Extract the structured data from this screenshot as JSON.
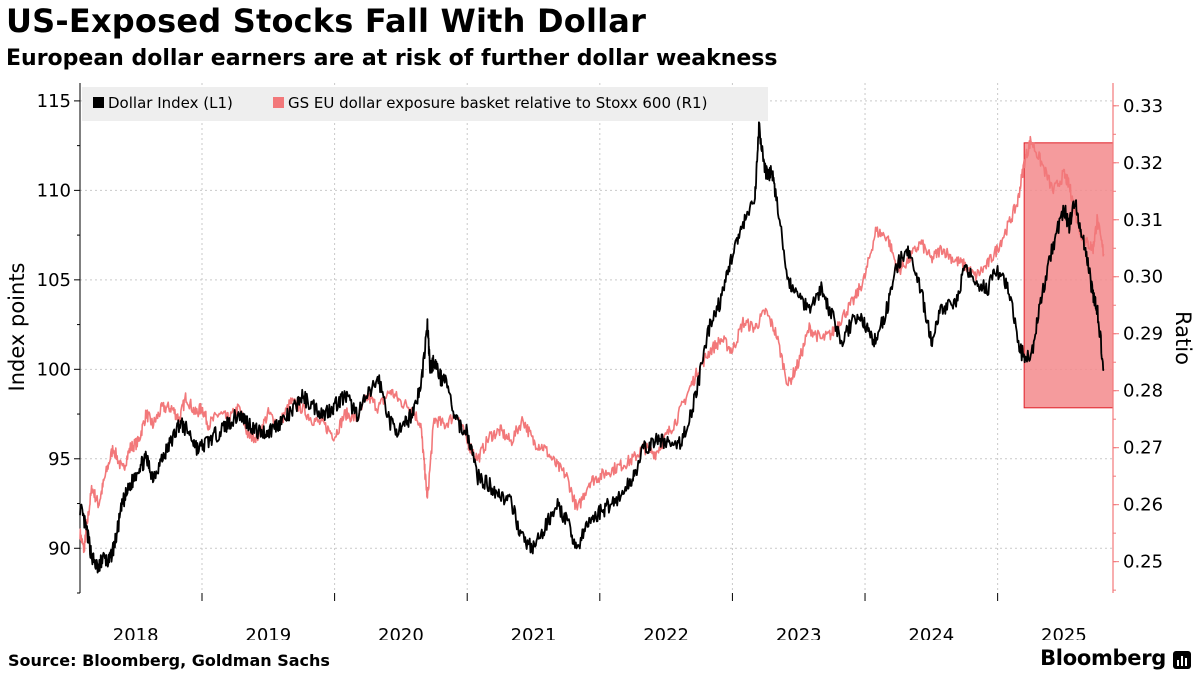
{
  "title": "US-Exposed Stocks Fall With Dollar",
  "subtitle": "European dollar earners are at risk of further dollar weakness",
  "source": "Source: Bloomberg, Goldman Sachs",
  "brand": "Bloomberg",
  "colors": {
    "dollar": "#000000",
    "basket": "#f2787a",
    "highlight_fill": "#f38a8c",
    "highlight_stroke": "#e01f27",
    "right_axis": "#f2787a",
    "grid": "#c9c9c9"
  },
  "chart_data": {
    "type": "line",
    "title": "US-Exposed Stocks Fall With Dollar",
    "subtitle": "European dollar earners are at risk of further dollar weakness",
    "ylabel": "Index points",
    "ylabel_right": "Ratio",
    "ylim": [
      87.5,
      116
    ],
    "ylim_right": [
      0.2445,
      0.334
    ],
    "xlim": [
      2017.58,
      2025.37
    ],
    "yticks": [
      90,
      95,
      100,
      105,
      110,
      115
    ],
    "yticks_right": [
      0.25,
      0.26,
      0.27,
      0.28,
      0.29,
      0.3,
      0.31,
      0.32,
      0.33
    ],
    "ytick_labels_right": [
      "0.25",
      "0.26",
      "0.27",
      "0.28",
      "0.29",
      "0.30",
      "0.31",
      "0.32",
      "0.33"
    ],
    "xtick_labels": [
      "2018",
      "2019",
      "2020",
      "2021",
      "2022",
      "2023",
      "2024",
      "2025"
    ],
    "xticks_at": [
      2018.0,
      2019.0,
      2020.0,
      2021.0,
      2022.0,
      2023.0,
      2024.0,
      2025.0
    ],
    "legend": [
      "Dollar Index (L1)",
      "GS EU dollar exposure basket relative to Stoxx 600 (R1)"
    ],
    "legend_position": "top-left",
    "highlight": {
      "x": [
        2024.7,
        2025.37
      ],
      "y_right": [
        0.277,
        0.3235
      ]
    },
    "series": [
      {
        "name": "Dollar Index (L1)",
        "axis": "left",
        "x": [
          2017.58,
          2017.63,
          2017.67,
          2017.72,
          2017.75,
          2017.8,
          2017.85,
          2017.9,
          2017.96,
          2018.02,
          2018.08,
          2018.13,
          2018.2,
          2018.27,
          2018.33,
          2018.4,
          2018.47,
          2018.55,
          2018.63,
          2018.7,
          2018.78,
          2018.85,
          2018.92,
          2019.0,
          2019.08,
          2019.17,
          2019.25,
          2019.33,
          2019.42,
          2019.5,
          2019.58,
          2019.67,
          2019.75,
          2019.83,
          2019.92,
          2020.0,
          2020.08,
          2020.15,
          2020.2,
          2020.22,
          2020.25,
          2020.3,
          2020.33,
          2020.42,
          2020.5,
          2020.58,
          2020.67,
          2020.75,
          2020.83,
          2020.92,
          2021.0,
          2021.08,
          2021.17,
          2021.25,
          2021.33,
          2021.42,
          2021.5,
          2021.58,
          2021.67,
          2021.75,
          2021.83,
          2021.92,
          2022.0,
          2022.08,
          2022.17,
          2022.25,
          2022.33,
          2022.42,
          2022.5,
          2022.58,
          2022.67,
          2022.7,
          2022.75,
          2022.8,
          2022.83,
          2022.92,
          2023.0,
          2023.08,
          2023.17,
          2023.25,
          2023.33,
          2023.42,
          2023.5,
          2023.58,
          2023.67,
          2023.75,
          2023.83,
          2023.92,
          2024.0,
          2024.08,
          2024.17,
          2024.25,
          2024.33,
          2024.42,
          2024.5,
          2024.58,
          2024.67,
          2024.75,
          2024.83,
          2024.92,
          2025.0,
          2025.04,
          2025.08,
          2025.12,
          2025.17,
          2025.22,
          2025.25,
          2025.3
        ],
        "values": [
          92.3,
          91.0,
          89.5,
          88.8,
          89.5,
          89.2,
          90.5,
          92.5,
          93.5,
          94.5,
          95.0,
          94.0,
          95.0,
          96.0,
          97.0,
          96.5,
          95.5,
          96.0,
          96.5,
          97.0,
          97.5,
          97.0,
          96.5,
          96.5,
          97.0,
          97.5,
          98.5,
          98.0,
          97.5,
          98.0,
          98.5,
          97.5,
          98.5,
          99.5,
          97.0,
          96.5,
          97.5,
          99.0,
          102.5,
          100.0,
          100.5,
          99.5,
          99.5,
          97.0,
          96.5,
          94.0,
          93.5,
          93.0,
          92.5,
          90.5,
          90.0,
          91.0,
          92.5,
          91.5,
          90.0,
          91.5,
          92.0,
          92.5,
          93.0,
          94.0,
          95.5,
          96.0,
          96.0,
          95.5,
          97.0,
          99.5,
          102.5,
          104.0,
          106.5,
          108.0,
          109.5,
          113.5,
          111.0,
          111.0,
          109.5,
          105.0,
          104.0,
          103.5,
          104.5,
          103.0,
          101.5,
          103.0,
          102.5,
          101.5,
          103.5,
          106.0,
          106.5,
          104.5,
          101.5,
          103.5,
          103.5,
          105.5,
          105.0,
          104.5,
          105.5,
          104.5,
          101.0,
          100.5,
          104.0,
          107.0,
          109.0,
          108.0,
          109.5,
          108.0,
          106.5,
          104.0,
          103.5,
          100.0
        ]
      },
      {
        "name": "GS EU dollar exposure basket relative to Stoxx 600 (R1)",
        "axis": "right",
        "x": [
          2017.58,
          2017.61,
          2017.63,
          2017.67,
          2017.72,
          2017.77,
          2017.83,
          2017.9,
          2017.96,
          2018.02,
          2018.08,
          2018.13,
          2018.2,
          2018.27,
          2018.33,
          2018.38,
          2018.45,
          2018.5,
          2018.55,
          2018.63,
          2018.7,
          2018.78,
          2018.85,
          2018.92,
          2019.0,
          2019.08,
          2019.17,
          2019.25,
          2019.33,
          2019.42,
          2019.5,
          2019.58,
          2019.67,
          2019.75,
          2019.83,
          2019.92,
          2020.0,
          2020.08,
          2020.15,
          2020.18,
          2020.2,
          2020.25,
          2020.33,
          2020.42,
          2020.5,
          2020.58,
          2020.67,
          2020.75,
          2020.83,
          2020.92,
          2021.0,
          2021.08,
          2021.17,
          2021.25,
          2021.33,
          2021.42,
          2021.5,
          2021.58,
          2021.67,
          2021.75,
          2021.83,
          2021.92,
          2022.0,
          2022.08,
          2022.17,
          2022.25,
          2022.33,
          2022.42,
          2022.5,
          2022.58,
          2022.67,
          2022.75,
          2022.83,
          2022.92,
          2023.0,
          2023.08,
          2023.17,
          2023.25,
          2023.33,
          2023.42,
          2023.5,
          2023.58,
          2023.67,
          2023.75,
          2023.83,
          2023.92,
          2024.0,
          2024.08,
          2024.17,
          2024.25,
          2024.33,
          2024.42,
          2024.5,
          2024.58,
          2024.65,
          2024.7,
          2024.75,
          2024.83,
          2024.92,
          2025.0,
          2025.04,
          2025.08,
          2025.12,
          2025.17,
          2025.22,
          2025.25,
          2025.3
        ],
        "values": [
          0.255,
          0.252,
          0.256,
          0.263,
          0.26,
          0.265,
          0.27,
          0.266,
          0.27,
          0.271,
          0.276,
          0.274,
          0.277,
          0.277,
          0.275,
          0.279,
          0.276,
          0.277,
          0.274,
          0.276,
          0.275,
          0.277,
          0.272,
          0.272,
          0.276,
          0.274,
          0.278,
          0.277,
          0.275,
          0.274,
          0.272,
          0.276,
          0.275,
          0.279,
          0.277,
          0.28,
          0.278,
          0.277,
          0.274,
          0.266,
          0.261,
          0.275,
          0.274,
          0.276,
          0.271,
          0.268,
          0.272,
          0.273,
          0.271,
          0.275,
          0.271,
          0.27,
          0.267,
          0.265,
          0.259,
          0.264,
          0.265,
          0.266,
          0.267,
          0.268,
          0.27,
          0.269,
          0.272,
          0.275,
          0.28,
          0.284,
          0.287,
          0.289,
          0.287,
          0.292,
          0.291,
          0.294,
          0.29,
          0.281,
          0.285,
          0.291,
          0.289,
          0.29,
          0.293,
          0.296,
          0.3,
          0.308,
          0.307,
          0.301,
          0.303,
          0.306,
          0.303,
          0.305,
          0.303,
          0.302,
          0.3,
          0.302,
          0.305,
          0.309,
          0.313,
          0.32,
          0.324,
          0.32,
          0.315,
          0.318,
          0.316,
          0.312,
          0.308,
          0.306,
          0.305,
          0.31,
          0.304
        ]
      }
    ]
  }
}
